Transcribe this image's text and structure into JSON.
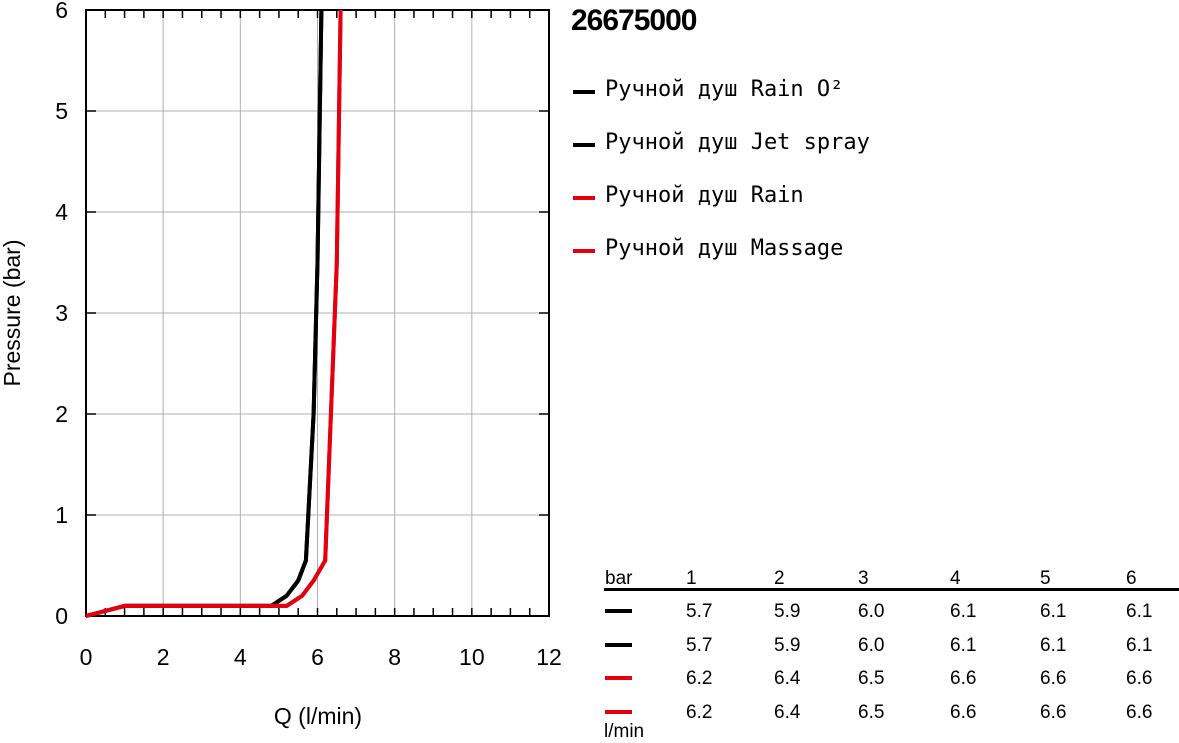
{
  "chart_data": {
    "type": "line",
    "title": "26675000",
    "xlabel": "Q (l/min)",
    "ylabel": "Pressure (bar)",
    "xlim": [
      0,
      12
    ],
    "ylim": [
      0,
      6
    ],
    "x_ticks": [
      0,
      2,
      4,
      6,
      8,
      10,
      12
    ],
    "y_ticks": [
      0,
      1,
      2,
      3,
      4,
      5,
      6
    ],
    "grid": true,
    "legend_position": "right",
    "series": [
      {
        "name": "Ручной душ Rain O²",
        "color": "#000000",
        "points": [
          [
            0,
            0
          ],
          [
            1.0,
            0.1
          ],
          [
            4.8,
            0.1
          ],
          [
            5.2,
            0.2
          ],
          [
            5.5,
            0.35
          ],
          [
            5.7,
            0.55
          ],
          [
            5.9,
            2.0
          ],
          [
            6.0,
            3.5
          ],
          [
            6.1,
            6.0
          ]
        ]
      },
      {
        "name": "Ручной душ Jet spray",
        "color": "#000000",
        "points": [
          [
            0,
            0
          ],
          [
            1.0,
            0.1
          ],
          [
            4.8,
            0.1
          ],
          [
            5.2,
            0.2
          ],
          [
            5.5,
            0.35
          ],
          [
            5.7,
            0.55
          ],
          [
            5.9,
            2.0
          ],
          [
            6.0,
            3.5
          ],
          [
            6.1,
            6.0
          ]
        ]
      },
      {
        "name": "Ручной душ Rain",
        "color": "#e3000f",
        "points": [
          [
            0,
            0
          ],
          [
            1.0,
            0.1
          ],
          [
            5.2,
            0.1
          ],
          [
            5.6,
            0.2
          ],
          [
            5.9,
            0.35
          ],
          [
            6.2,
            0.55
          ],
          [
            6.4,
            2.5
          ],
          [
            6.5,
            3.5
          ],
          [
            6.6,
            6.0
          ]
        ]
      },
      {
        "name": "Ручной душ Massage",
        "color": "#e3000f",
        "points": [
          [
            0,
            0
          ],
          [
            1.0,
            0.1
          ],
          [
            5.2,
            0.1
          ],
          [
            5.6,
            0.2
          ],
          [
            5.9,
            0.35
          ],
          [
            6.2,
            0.55
          ],
          [
            6.4,
            2.5
          ],
          [
            6.5,
            3.5
          ],
          [
            6.6,
            6.0
          ]
        ]
      }
    ],
    "table": {
      "header_label": "bar",
      "unit_label": "l/min",
      "columns": [
        "1",
        "2",
        "3",
        "4",
        "5",
        "6"
      ],
      "rows": [
        {
          "color": "#000000",
          "values": [
            "5.7",
            "5.9",
            "6.0",
            "6.1",
            "6.1",
            "6.1"
          ]
        },
        {
          "color": "#000000",
          "values": [
            "5.7",
            "5.9",
            "6.0",
            "6.1",
            "6.1",
            "6.1"
          ]
        },
        {
          "color": "#e3000f",
          "values": [
            "6.2",
            "6.4",
            "6.5",
            "6.6",
            "6.6",
            "6.6"
          ]
        },
        {
          "color": "#e3000f",
          "values": [
            "6.2",
            "6.4",
            "6.5",
            "6.6",
            "6.6",
            "6.6"
          ]
        }
      ]
    }
  }
}
